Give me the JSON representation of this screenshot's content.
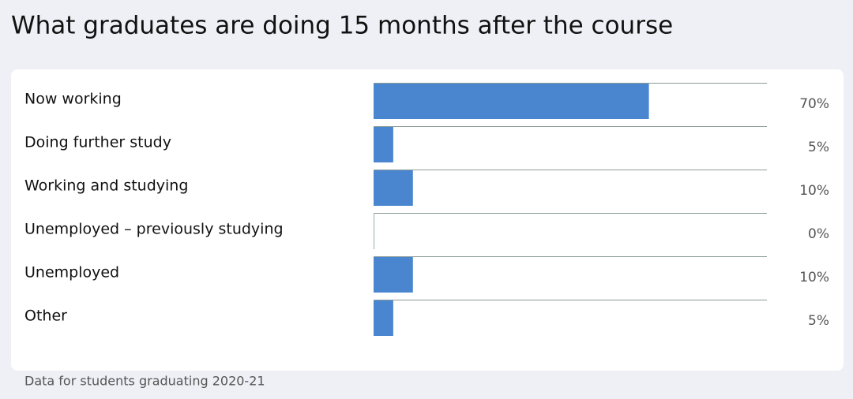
{
  "chart_data": {
    "type": "bar",
    "orientation": "horizontal",
    "title": "What graduates are doing 15 months after the course",
    "categories": [
      "Now working",
      "Doing further study",
      "Working and studying",
      "Unemployed – previously studying",
      "Unemployed",
      "Other"
    ],
    "values": [
      70,
      5,
      10,
      0,
      10,
      5
    ],
    "value_labels": [
      "70%",
      "5%",
      "10%",
      "0%",
      "10%",
      "5%"
    ],
    "xlim": [
      0,
      100
    ],
    "color": "#4a86cf",
    "note": "Data for students graduating 2020-21"
  }
}
